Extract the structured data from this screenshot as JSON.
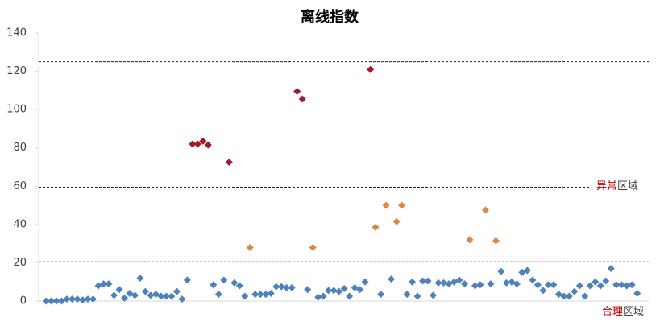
{
  "chart_data": {
    "type": "scatter",
    "title": "离线指数",
    "ylim": [
      0,
      140
    ],
    "yticks": [
      0,
      20,
      40,
      60,
      80,
      100,
      120,
      140
    ],
    "xlim": [
      -0.4,
      116.2
    ],
    "ref_lines": [
      125,
      59.5,
      20.5
    ],
    "annotations": {
      "abnormal": [
        "异常",
        "区域"
      ],
      "normal": [
        "合理",
        "区域"
      ]
    },
    "series": [
      {
        "color": "#4f81bd",
        "x": [
          1,
          2,
          3,
          4,
          5,
          6,
          7,
          8,
          9,
          10,
          11,
          12,
          13,
          14,
          15,
          16,
          17,
          18,
          19,
          20,
          21,
          22,
          23,
          24,
          25,
          26,
          27,
          28,
          33,
          34,
          35,
          37,
          38,
          39,
          41,
          42,
          43,
          44,
          45,
          46,
          47,
          48,
          51,
          53,
          54,
          55,
          56,
          57,
          58,
          59,
          60,
          61,
          62,
          65,
          67,
          70,
          71,
          72,
          73,
          74,
          75,
          76,
          77,
          78,
          79,
          80,
          81,
          83,
          84,
          86,
          88,
          89,
          90,
          91,
          92,
          93,
          94,
          95,
          96,
          97,
          98,
          99,
          100,
          101,
          102,
          103,
          104,
          105,
          106,
          107,
          108,
          109,
          110,
          111,
          112,
          113,
          114
        ],
        "values": [
          0,
          0,
          0,
          0,
          1,
          1,
          1,
          0.5,
          1,
          1,
          8,
          9,
          9,
          3,
          6,
          1.5,
          4,
          3,
          12,
          5,
          3,
          3.5,
          2.5,
          2.5,
          2.5,
          5,
          1,
          11,
          8.5,
          3.5,
          11,
          9.5,
          8,
          2.5,
          3.5,
          3.5,
          3.5,
          4,
          7.5,
          7.5,
          7,
          7,
          6,
          2,
          2.5,
          5.5,
          5.5,
          5,
          6.5,
          2.5,
          7,
          6,
          10,
          3.5,
          11.5,
          3.5,
          10,
          2.5,
          10.5,
          10.5,
          3,
          9.5,
          9.5,
          9,
          10,
          11,
          9,
          8,
          8.5,
          9,
          15.5,
          9.5,
          10,
          9,
          15,
          16,
          11,
          8.5,
          5.5,
          8.5,
          8.5,
          3.5,
          2.5,
          2.5,
          5,
          8,
          2.5,
          8,
          10,
          8,
          10.5,
          17,
          8.5,
          8.5,
          8,
          8.5,
          4
        ]
      },
      {
        "color": "#d68a44",
        "x": [
          40,
          52,
          64,
          66,
          68,
          69,
          82,
          85,
          87
        ],
        "values": [
          28,
          28,
          38.5,
          50,
          41.5,
          50,
          32,
          47.5,
          31.5
        ]
      },
      {
        "color": "#a31a2b",
        "x": [
          29,
          30,
          31,
          32,
          36,
          49,
          50,
          63
        ],
        "values": [
          82,
          82,
          83.5,
          81.5,
          72.5,
          109.5,
          105.5,
          121
        ]
      }
    ]
  }
}
